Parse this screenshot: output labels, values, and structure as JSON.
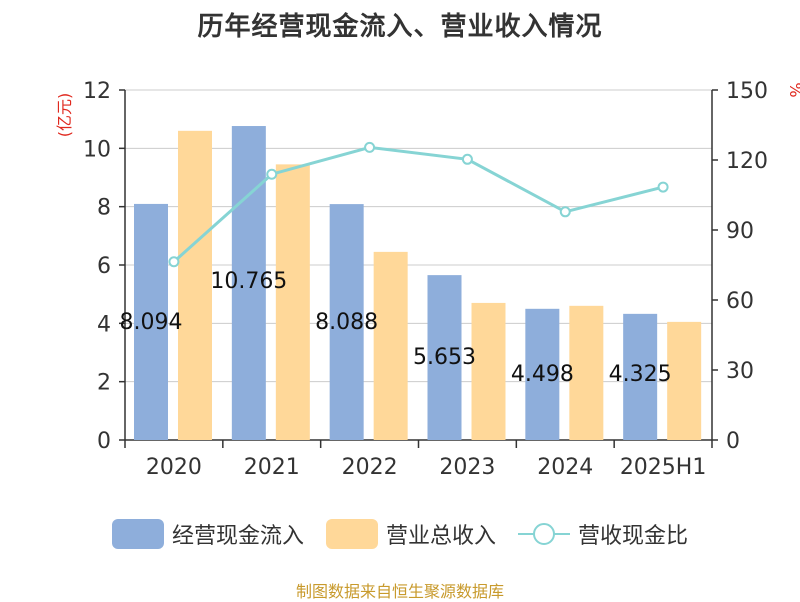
{
  "chart_data": {
    "type": "bar",
    "title": "历年经营现金流入、营业收入情况",
    "categories": [
      "2020",
      "2021",
      "2022",
      "2023",
      "2024",
      "2025H1"
    ],
    "y_left": {
      "unit_label": "(亿元)",
      "ticks": [
        "0",
        "2",
        "4",
        "6",
        "8",
        "10",
        "12"
      ],
      "ylim": [
        0,
        12
      ]
    },
    "y_right": {
      "unit_label": "%",
      "ticks": [
        "0",
        "30",
        "60",
        "90",
        "120",
        "150"
      ],
      "ylim": [
        0,
        150
      ]
    },
    "series": [
      {
        "name": "经营现金流入",
        "kind": "bar",
        "axis": "left",
        "color": "#8eaedb",
        "values": [
          8.094,
          10.765,
          8.088,
          5.653,
          4.498,
          4.325
        ],
        "labels": [
          "8.094",
          "10.765",
          "8.088",
          "5.653",
          "4.498",
          "4.325"
        ]
      },
      {
        "name": "营业总收入",
        "kind": "bar",
        "axis": "left",
        "color": "#ffd899",
        "values": [
          10.6,
          9.45,
          6.45,
          4.7,
          4.6,
          4.05
        ]
      },
      {
        "name": "营收现金比",
        "kind": "line",
        "axis": "right",
        "color": "#86d4d4",
        "values": [
          76.4,
          113.9,
          125.4,
          120.3,
          97.8,
          108.4
        ]
      }
    ],
    "grid": true,
    "legend_position": "bottom"
  },
  "legend": {
    "item1": "经营现金流入",
    "item2": "营业总收入",
    "item3": "营收现金比"
  },
  "footer": {
    "source": "制图数据来自恒生聚源数据库"
  }
}
